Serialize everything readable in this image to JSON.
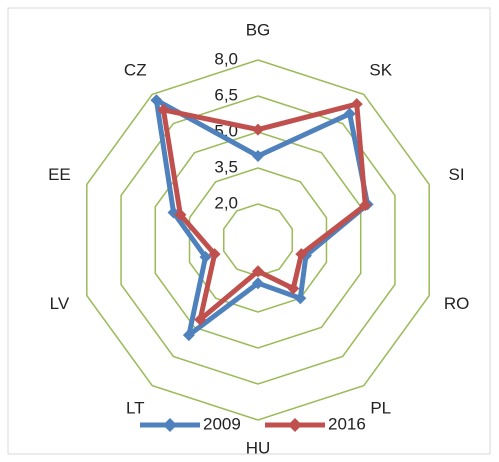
{
  "chart_data": {
    "type": "radar",
    "categories": [
      "BG",
      "SK",
      "SI",
      "RO",
      "PL",
      "HU",
      "LT",
      "LV",
      "EE",
      "CZ"
    ],
    "series": [
      {
        "name": "2009",
        "color": "#4f81bd",
        "values": [
          4.0,
          7.0,
          5.3,
          2.6,
          3.5,
          2.3,
          5.4,
          2.8,
          4.2,
          7.7
        ]
      },
      {
        "name": "2016",
        "color": "#c0504d",
        "values": [
          5.1,
          7.5,
          5.2,
          2.4,
          3.0,
          1.8,
          4.6,
          2.4,
          3.9,
          7.2
        ]
      }
    ],
    "ylim": [
      0.5,
      8.0
    ],
    "yticks": [
      {
        "value": 2,
        "label": "2,0"
      },
      {
        "value": 3.5,
        "label": "3,5"
      },
      {
        "value": 5,
        "label": "5,0"
      },
      {
        "value": 6.5,
        "label": "6,5"
      },
      {
        "value": 8,
        "label": "8,0"
      }
    ],
    "grid": true,
    "grid_color": "#9bbb59",
    "legend": "bottom"
  }
}
